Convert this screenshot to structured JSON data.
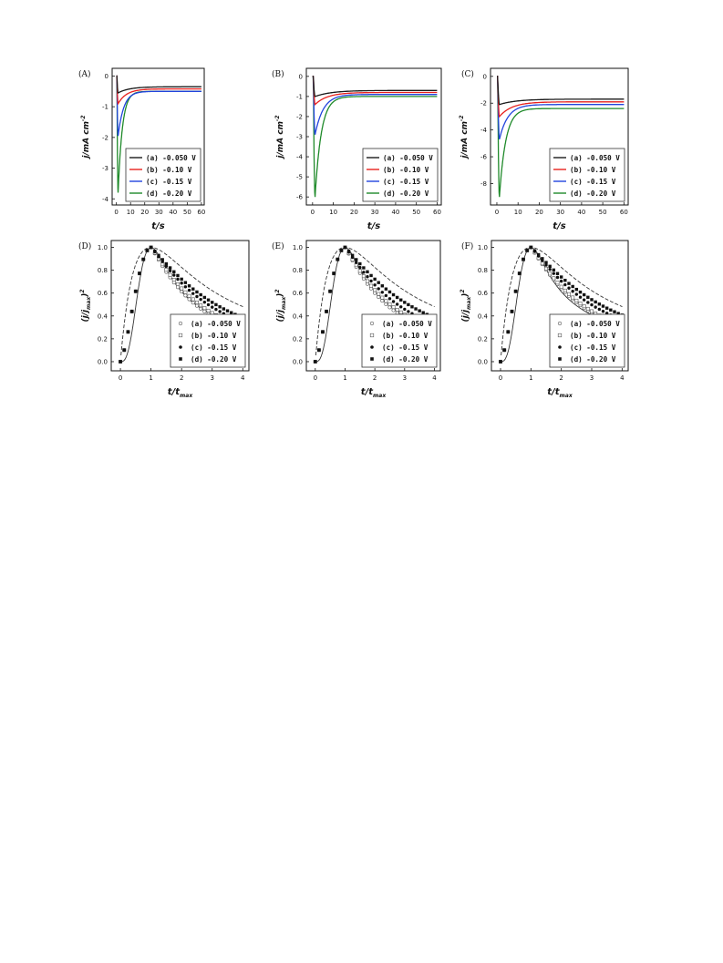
{
  "legend_labels": [
    "(a) -0.050 V",
    "(b) -0.10 V",
    "(c) -0.15 V",
    "(d) -0.20 V"
  ],
  "chart_data": [
    {
      "panel": "(A)",
      "type": "line",
      "xlabel": "t/s",
      "ylabel": "j/mA cm",
      "ylabel_sup": "-2",
      "xlim": [
        -3,
        62
      ],
      "ylim": [
        -4.2,
        0.25
      ],
      "xticks": [
        0,
        10,
        20,
        30,
        40,
        50,
        60
      ],
      "yticks": [
        0,
        -1,
        -2,
        -3,
        -4
      ],
      "legend_position": "bottom-right",
      "series": [
        {
          "name": "(a) -0.050 V",
          "color": "#1a1a1a",
          "params": {
            "peak": -0.55,
            "plateau": -0.35,
            "tau": 8
          }
        },
        {
          "name": "(b) -0.10 V",
          "color": "#e8211d",
          "params": {
            "peak": -0.9,
            "plateau": -0.42,
            "tau": 6
          }
        },
        {
          "name": "(c) -0.15 V",
          "color": "#2244dd",
          "params": {
            "peak": -1.95,
            "plateau": -0.5,
            "tau": 4
          }
        },
        {
          "name": "(d) -0.20 V",
          "color": "#1f8a2a",
          "params": {
            "peak": -3.8,
            "plateau": -0.5,
            "tau": 3
          }
        }
      ]
    },
    {
      "panel": "(B)",
      "type": "line",
      "xlabel": "t/s",
      "ylabel": "j/mA cm",
      "ylabel_sup": "-2",
      "xlim": [
        -3,
        62
      ],
      "ylim": [
        -6.4,
        0.4
      ],
      "xticks": [
        0,
        10,
        20,
        30,
        40,
        50,
        60
      ],
      "yticks": [
        0,
        -1,
        -2,
        -3,
        -4,
        -5,
        -6
      ],
      "legend_position": "bottom-right",
      "series": [
        {
          "name": "(a) -0.050 V",
          "color": "#1a1a1a",
          "params": {
            "peak": -1.0,
            "plateau": -0.7,
            "tau": 8
          }
        },
        {
          "name": "(b) -0.10 V",
          "color": "#e8211d",
          "params": {
            "peak": -1.4,
            "plateau": -0.8,
            "tau": 6
          }
        },
        {
          "name": "(c) -0.15 V",
          "color": "#2244dd",
          "params": {
            "peak": -2.9,
            "plateau": -0.9,
            "tau": 4
          }
        },
        {
          "name": "(d) -0.20 V",
          "color": "#1f8a2a",
          "params": {
            "peak": -6.0,
            "plateau": -1.0,
            "tau": 3
          }
        }
      ]
    },
    {
      "panel": "(C)",
      "type": "line",
      "xlabel": "t/s",
      "ylabel": "j/mA cm",
      "ylabel_sup": "-2",
      "xlim": [
        -3,
        62
      ],
      "ylim": [
        -9.6,
        0.6
      ],
      "xticks": [
        0,
        10,
        20,
        30,
        40,
        50,
        60
      ],
      "yticks": [
        0,
        -2,
        -4,
        -6,
        -8
      ],
      "legend_position": "bottom-right",
      "series": [
        {
          "name": "(a) -0.050 V",
          "color": "#1a1a1a",
          "params": {
            "peak": -2.1,
            "plateau": -1.7,
            "tau": 8
          }
        },
        {
          "name": "(b) -0.10 V",
          "color": "#e8211d",
          "params": {
            "peak": -3.0,
            "plateau": -1.9,
            "tau": 6
          }
        },
        {
          "name": "(c) -0.15 V",
          "color": "#2244dd",
          "params": {
            "peak": -4.7,
            "plateau": -2.1,
            "tau": 4
          }
        },
        {
          "name": "(d) -0.20 V",
          "color": "#1f8a2a",
          "params": {
            "peak": -9.0,
            "plateau": -2.4,
            "tau": 3
          }
        }
      ]
    },
    {
      "panel": "(D)",
      "type": "scatter",
      "xlabel": "t/t",
      "xlabel_sub": "max",
      "ylabel": "(j/j",
      "ylabel_sub": "max",
      "ylabel_tail": ")",
      "ylabel_sup": "2",
      "xlim": [
        -0.3,
        4.2
      ],
      "ylim": [
        -0.08,
        1.06
      ],
      "xticks": [
        0,
        1,
        2,
        3,
        4
      ],
      "yticks": [
        0.0,
        0.2,
        0.4,
        0.6,
        0.8,
        1.0
      ],
      "legend_position": "bottom-right",
      "series": [
        {
          "name": "(a) -0.050 V",
          "marker": "open-circle",
          "decay": 0.18
        },
        {
          "name": "(b) -0.10 V",
          "marker": "open-square",
          "decay": 0.16
        },
        {
          "name": "(c) -0.15 V",
          "marker": "filled-circle",
          "decay": 0.13
        },
        {
          "name": "(d) -0.20 V",
          "marker": "filled-square",
          "decay": 0.11
        }
      ]
    },
    {
      "panel": "(E)",
      "type": "scatter",
      "xlabel": "t/t",
      "xlabel_sub": "max",
      "ylabel": "(j/j",
      "ylabel_sub": "max",
      "ylabel_tail": ")",
      "ylabel_sup": "2",
      "xlim": [
        -0.3,
        4.2
      ],
      "ylim": [
        -0.08,
        1.06
      ],
      "xticks": [
        0,
        1,
        2,
        3,
        4
      ],
      "yticks": [
        0.0,
        0.2,
        0.4,
        0.6,
        0.8,
        1.0
      ],
      "legend_position": "bottom-right",
      "series": [
        {
          "name": "(a) -0.050 V",
          "marker": "open-circle",
          "decay": 0.19
        },
        {
          "name": "(b) -0.10 V",
          "marker": "open-square",
          "decay": 0.17
        },
        {
          "name": "(c) -0.15 V",
          "marker": "filled-circle",
          "decay": 0.14
        },
        {
          "name": "(d) -0.20 V",
          "marker": "filled-square",
          "decay": 0.11
        }
      ]
    },
    {
      "panel": "(F)",
      "type": "scatter",
      "xlabel": "t/t",
      "xlabel_sub": "max",
      "ylabel": "(j/j",
      "ylabel_sub": "max",
      "ylabel_tail": ")",
      "ylabel_sup": "2",
      "xlim": [
        -0.3,
        4.2
      ],
      "ylim": [
        -0.08,
        1.06
      ],
      "xticks": [
        0,
        1,
        2,
        3,
        4
      ],
      "yticks": [
        0.0,
        0.2,
        0.4,
        0.6,
        0.8,
        1.0
      ],
      "legend_position": "bottom-right",
      "series": [
        {
          "name": "(a) -0.050 V",
          "marker": "open-circle",
          "decay": 0.16
        },
        {
          "name": "(b) -0.10 V",
          "marker": "open-square",
          "decay": 0.15
        },
        {
          "name": "(c) -0.15 V",
          "marker": "filled-circle",
          "decay": 0.12
        },
        {
          "name": "(d) -0.20 V",
          "marker": "filled-square",
          "decay": 0.1
        }
      ]
    }
  ]
}
